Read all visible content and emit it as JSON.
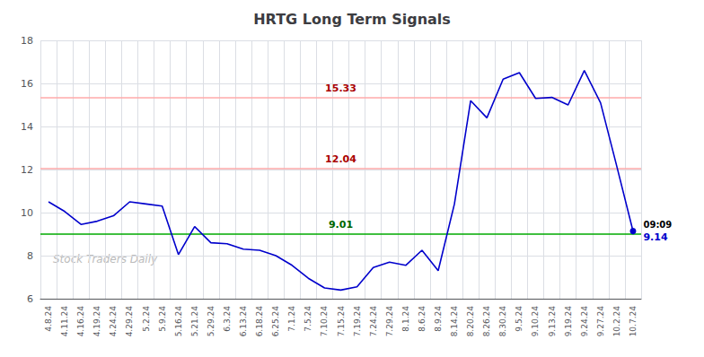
{
  "chart_data": {
    "type": "line",
    "title": "HRTG Long Term Signals",
    "categories": [
      "4.8.24",
      "4.11.24",
      "4.16.24",
      "4.19.24",
      "4.24.24",
      "4.29.24",
      "5.2.24",
      "5.9.24",
      "5.16.24",
      "5.21.24",
      "5.29.24",
      "6.3.24",
      "6.13.24",
      "6.18.24",
      "6.25.24",
      "7.1.24",
      "7.5.24",
      "7.10.24",
      "7.15.24",
      "7.19.24",
      "7.24.24",
      "7.29.24",
      "8.1.24",
      "8.6.24",
      "8.9.24",
      "8.14.24",
      "8.20.24",
      "8.26.24",
      "8.30.24",
      "9.5.24",
      "9.10.24",
      "9.13.24",
      "9.19.24",
      "9.24.24",
      "9.27.24",
      "10.2.24",
      "10.7.24"
    ],
    "values": [
      10.5,
      10.05,
      9.45,
      9.6,
      9.85,
      10.5,
      10.4,
      10.3,
      8.05,
      9.35,
      8.6,
      8.55,
      8.3,
      8.25,
      8.0,
      7.55,
      6.95,
      6.5,
      6.4,
      6.55,
      7.45,
      7.7,
      7.55,
      8.25,
      7.3,
      10.4,
      15.2,
      14.4,
      16.2,
      16.5,
      15.3,
      15.35,
      15.0,
      16.6,
      15.1,
      12.15,
      9.14
    ],
    "color": "#0000cc",
    "ylim": [
      6,
      18
    ],
    "yticks": [
      6,
      8,
      10,
      12,
      14,
      16,
      18
    ],
    "grid": true,
    "hlines": [
      {
        "value": 15.33,
        "label": "15.33",
        "color": "#ffaaaa",
        "label_color": "#aa0000"
      },
      {
        "value": 12.04,
        "label": "12.04",
        "color": "#ffaaaa",
        "label_color": "#aa0000"
      },
      {
        "value": 9.01,
        "label": "9.01",
        "color": "#00aa00",
        "label_color": "#006600"
      }
    ],
    "last_point": {
      "category": "10.7.24",
      "value": 9.14,
      "time_label": "09:09",
      "value_label": "9.14",
      "color": "#0000cc"
    },
    "watermark": {
      "text": "Stock Traders Daily",
      "color": "#bbbbbb"
    }
  }
}
